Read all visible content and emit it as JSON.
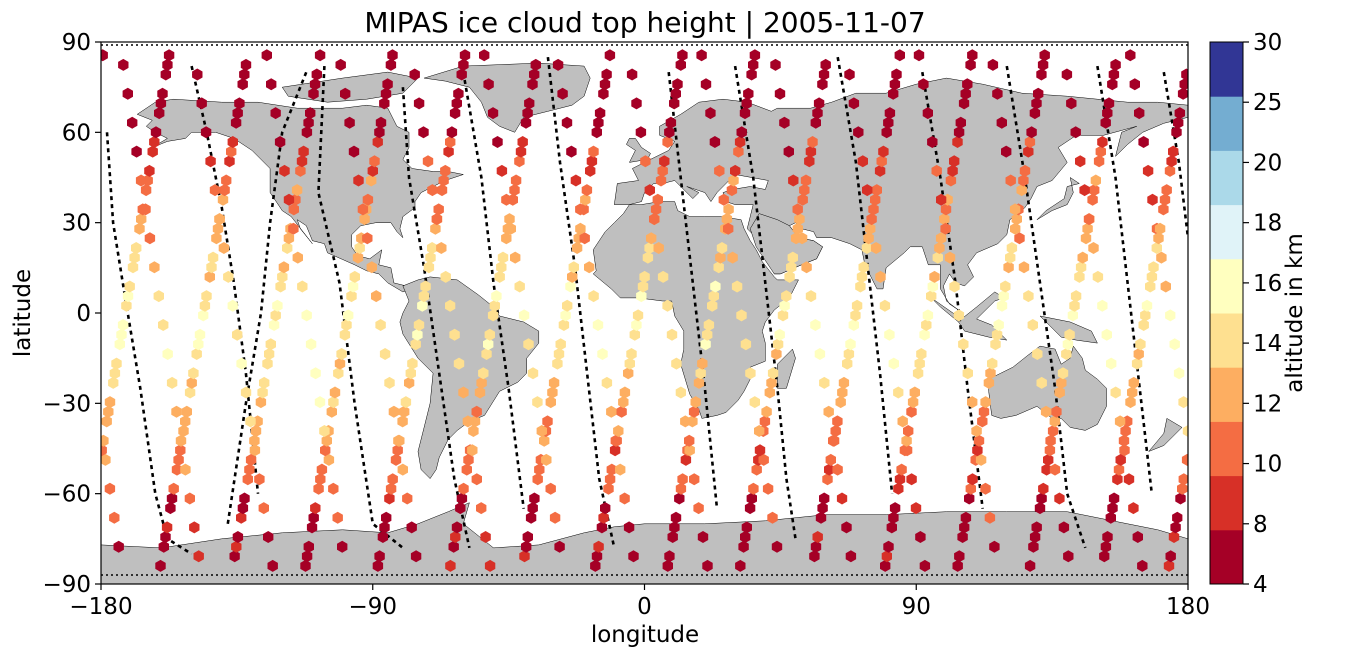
{
  "title": "MIPAS ice cloud top height | 2005-11-07",
  "chart_data": {
    "type": "scatter",
    "title": "MIPAS ice cloud top height | 2005-11-07",
    "xlabel": "longitude",
    "ylabel": "latitude",
    "xlim": [
      -180,
      180
    ],
    "ylim": [
      -90,
      90
    ],
    "xticks": [
      -180,
      -90,
      0,
      90,
      180
    ],
    "yticks": [
      -90,
      -60,
      -30,
      0,
      30,
      60,
      90
    ],
    "xtick_labels": [
      "−180",
      "−90",
      "0",
      "90",
      "180"
    ],
    "ytick_labels": [
      "−90",
      "−60",
      "−30",
      "0",
      "30",
      "60",
      "90"
    ],
    "colorbar": {
      "label": "altitude in km",
      "boundaries": [
        4,
        8,
        10,
        12,
        14,
        16,
        18,
        20,
        25,
        30
      ],
      "tick_labels": [
        "4",
        "8",
        "10",
        "12",
        "14",
        "16",
        "18",
        "20",
        "25",
        "30"
      ],
      "colors": [
        "#a50026",
        "#d73027",
        "#f46d43",
        "#fdae61",
        "#fee090",
        "#ffffbf",
        "#e0f3f8",
        "#abd9e9",
        "#74add1",
        "#313695"
      ]
    },
    "land_color": "#bfbfbf",
    "track_style": "black dashed line"
  }
}
